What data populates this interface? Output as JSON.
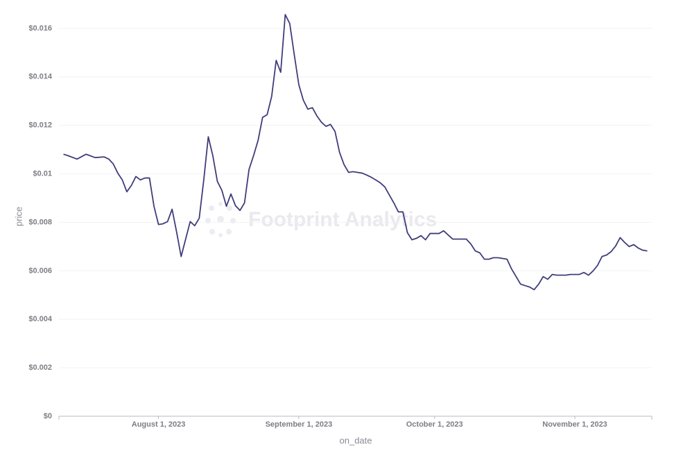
{
  "chart_data": {
    "type": "line",
    "x_label": "on_date",
    "y_label": "price",
    "watermark": "Footprint Analytics",
    "color": "#3f3c7a",
    "grid": true,
    "x": [
      "2023-07-11",
      "2023-07-12",
      "2023-07-14",
      "2023-07-16",
      "2023-07-18",
      "2023-07-20",
      "2023-07-21",
      "2023-07-22",
      "2023-07-23",
      "2023-07-24",
      "2023-07-25",
      "2023-07-26",
      "2023-07-27",
      "2023-07-28",
      "2023-07-29",
      "2023-07-30",
      "2023-07-31",
      "2023-08-01",
      "2023-08-02",
      "2023-08-03",
      "2023-08-04",
      "2023-08-05",
      "2023-08-06",
      "2023-08-07",
      "2023-08-08",
      "2023-08-09",
      "2023-08-10",
      "2023-08-11",
      "2023-08-12",
      "2023-08-13",
      "2023-08-14",
      "2023-08-15",
      "2023-08-16",
      "2023-08-17",
      "2023-08-18",
      "2023-08-19",
      "2023-08-20",
      "2023-08-21",
      "2023-08-22",
      "2023-08-23",
      "2023-08-24",
      "2023-08-25",
      "2023-08-26",
      "2023-08-27",
      "2023-08-28",
      "2023-08-29",
      "2023-08-30",
      "2023-08-31",
      "2023-09-01",
      "2023-09-02",
      "2023-09-03",
      "2023-09-04",
      "2023-09-05",
      "2023-09-06",
      "2023-09-07",
      "2023-09-08",
      "2023-09-09",
      "2023-09-10",
      "2023-09-11",
      "2023-09-12",
      "2023-09-13",
      "2023-09-14",
      "2023-09-15",
      "2023-09-16",
      "2023-09-17",
      "2023-09-18",
      "2023-09-19",
      "2023-09-20",
      "2023-09-22",
      "2023-09-23",
      "2023-09-24",
      "2023-09-25",
      "2023-09-26",
      "2023-09-27",
      "2023-09-28",
      "2023-09-29",
      "2023-09-30",
      "2023-10-01",
      "2023-10-02",
      "2023-10-03",
      "2023-10-04",
      "2023-10-05",
      "2023-10-06",
      "2023-10-07",
      "2023-10-08",
      "2023-10-09",
      "2023-10-10",
      "2023-10-11",
      "2023-10-12",
      "2023-10-13",
      "2023-10-14",
      "2023-10-15",
      "2023-10-16",
      "2023-10-17",
      "2023-10-18",
      "2023-10-20",
      "2023-10-21",
      "2023-10-22",
      "2023-10-23",
      "2023-10-24",
      "2023-10-25",
      "2023-10-26",
      "2023-10-27",
      "2023-10-28",
      "2023-10-29",
      "2023-10-30",
      "2023-10-31",
      "2023-11-01",
      "2023-11-02",
      "2023-11-03",
      "2023-11-04",
      "2023-11-05",
      "2023-11-06",
      "2023-11-07",
      "2023-11-08",
      "2023-11-09",
      "2023-11-10",
      "2023-11-11",
      "2023-11-12",
      "2023-11-13",
      "2023-11-14",
      "2023-11-15",
      "2023-11-16",
      "2023-11-17"
    ],
    "values": [
      0.01081,
      0.01075,
      0.01061,
      0.01081,
      0.01067,
      0.0107,
      0.01061,
      0.01041,
      0.01003,
      0.00975,
      0.00926,
      0.00952,
      0.00989,
      0.00975,
      0.00983,
      0.00983,
      0.00866,
      0.00791,
      0.00794,
      0.00803,
      0.00854,
      0.0076,
      0.00659,
      0.00731,
      0.00803,
      0.00786,
      0.00817,
      0.00975,
      0.01153,
      0.01075,
      0.00969,
      0.00932,
      0.00866,
      0.00917,
      0.00869,
      0.00849,
      0.0088,
      0.01018,
      0.01075,
      0.01138,
      0.01233,
      0.01244,
      0.01319,
      0.01468,
      0.01419,
      0.01657,
      0.0162,
      0.01491,
      0.01368,
      0.01304,
      0.01267,
      0.01273,
      0.01239,
      0.01213,
      0.01196,
      0.01204,
      0.01175,
      0.01089,
      0.01038,
      0.01006,
      0.01009,
      0.01006,
      0.01003,
      0.00995,
      0.00986,
      0.00975,
      0.00963,
      0.00946,
      0.0088,
      0.00843,
      0.00843,
      0.00757,
      0.00728,
      0.00734,
      0.00745,
      0.00728,
      0.00754,
      0.00754,
      0.00754,
      0.00765,
      0.00748,
      0.00731,
      0.00731,
      0.00731,
      0.00731,
      0.00711,
      0.00682,
      0.00674,
      0.00648,
      0.00648,
      0.00654,
      0.00654,
      0.00651,
      0.00648,
      0.00608,
      0.00545,
      0.00539,
      0.00533,
      0.00522,
      0.00545,
      0.00576,
      0.00565,
      0.00585,
      0.00582,
      0.00582,
      0.00582,
      0.00585,
      0.00585,
      0.00585,
      0.00593,
      0.00582,
      0.00599,
      0.00622,
      0.00659,
      0.00665,
      0.00679,
      0.00702,
      0.00737,
      0.00717,
      0.007,
      0.00708,
      0.00694,
      0.00685,
      0.00682
    ],
    "xlim": [
      "2023-07-10",
      "2023-11-18"
    ],
    "xticks": [
      {
        "value": "2023-08-01",
        "label": "August 1, 2023"
      },
      {
        "value": "2023-09-01",
        "label": "September 1, 2023"
      },
      {
        "value": "2023-10-01",
        "label": "October 1, 2023"
      },
      {
        "value": "2023-11-01",
        "label": "November 1, 2023"
      }
    ],
    "ylim": [
      0,
      0.0166
    ],
    "yticks": [
      {
        "value": 0,
        "label": "$0"
      },
      {
        "value": 0.002,
        "label": "$0.002"
      },
      {
        "value": 0.004,
        "label": "$0.004"
      },
      {
        "value": 0.006,
        "label": "$0.006"
      },
      {
        "value": 0.008,
        "label": "$0.008"
      },
      {
        "value": 0.01,
        "label": "$0.01"
      },
      {
        "value": 0.012,
        "label": "$0.012"
      },
      {
        "value": 0.014,
        "label": "$0.014"
      },
      {
        "value": 0.016,
        "label": "$0.016"
      }
    ]
  }
}
